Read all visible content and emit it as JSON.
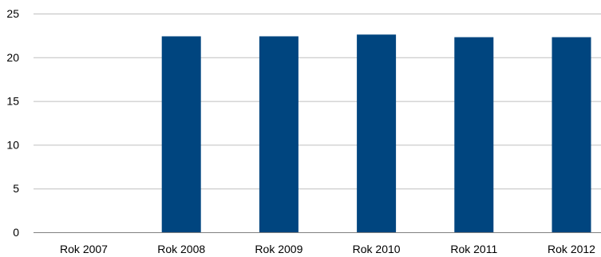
{
  "chart_data": {
    "type": "bar",
    "title": "",
    "xlabel": "",
    "ylabel": "",
    "categories": [
      "Rok 2007",
      "Rok 2008",
      "Rok 2009",
      "Rok 2010",
      "Rok 2011",
      "Rok 2012"
    ],
    "values": [
      0,
      22.4,
      22.4,
      22.6,
      22.3,
      22.3
    ],
    "ylim": [
      0,
      25
    ],
    "yticks": [
      "0",
      "5",
      "10",
      "15",
      "20",
      "25"
    ],
    "grid": true,
    "legend": "none",
    "colors": {
      "bar": "#00457f",
      "grid": "#bfbfbf",
      "axis": "#808080"
    }
  }
}
